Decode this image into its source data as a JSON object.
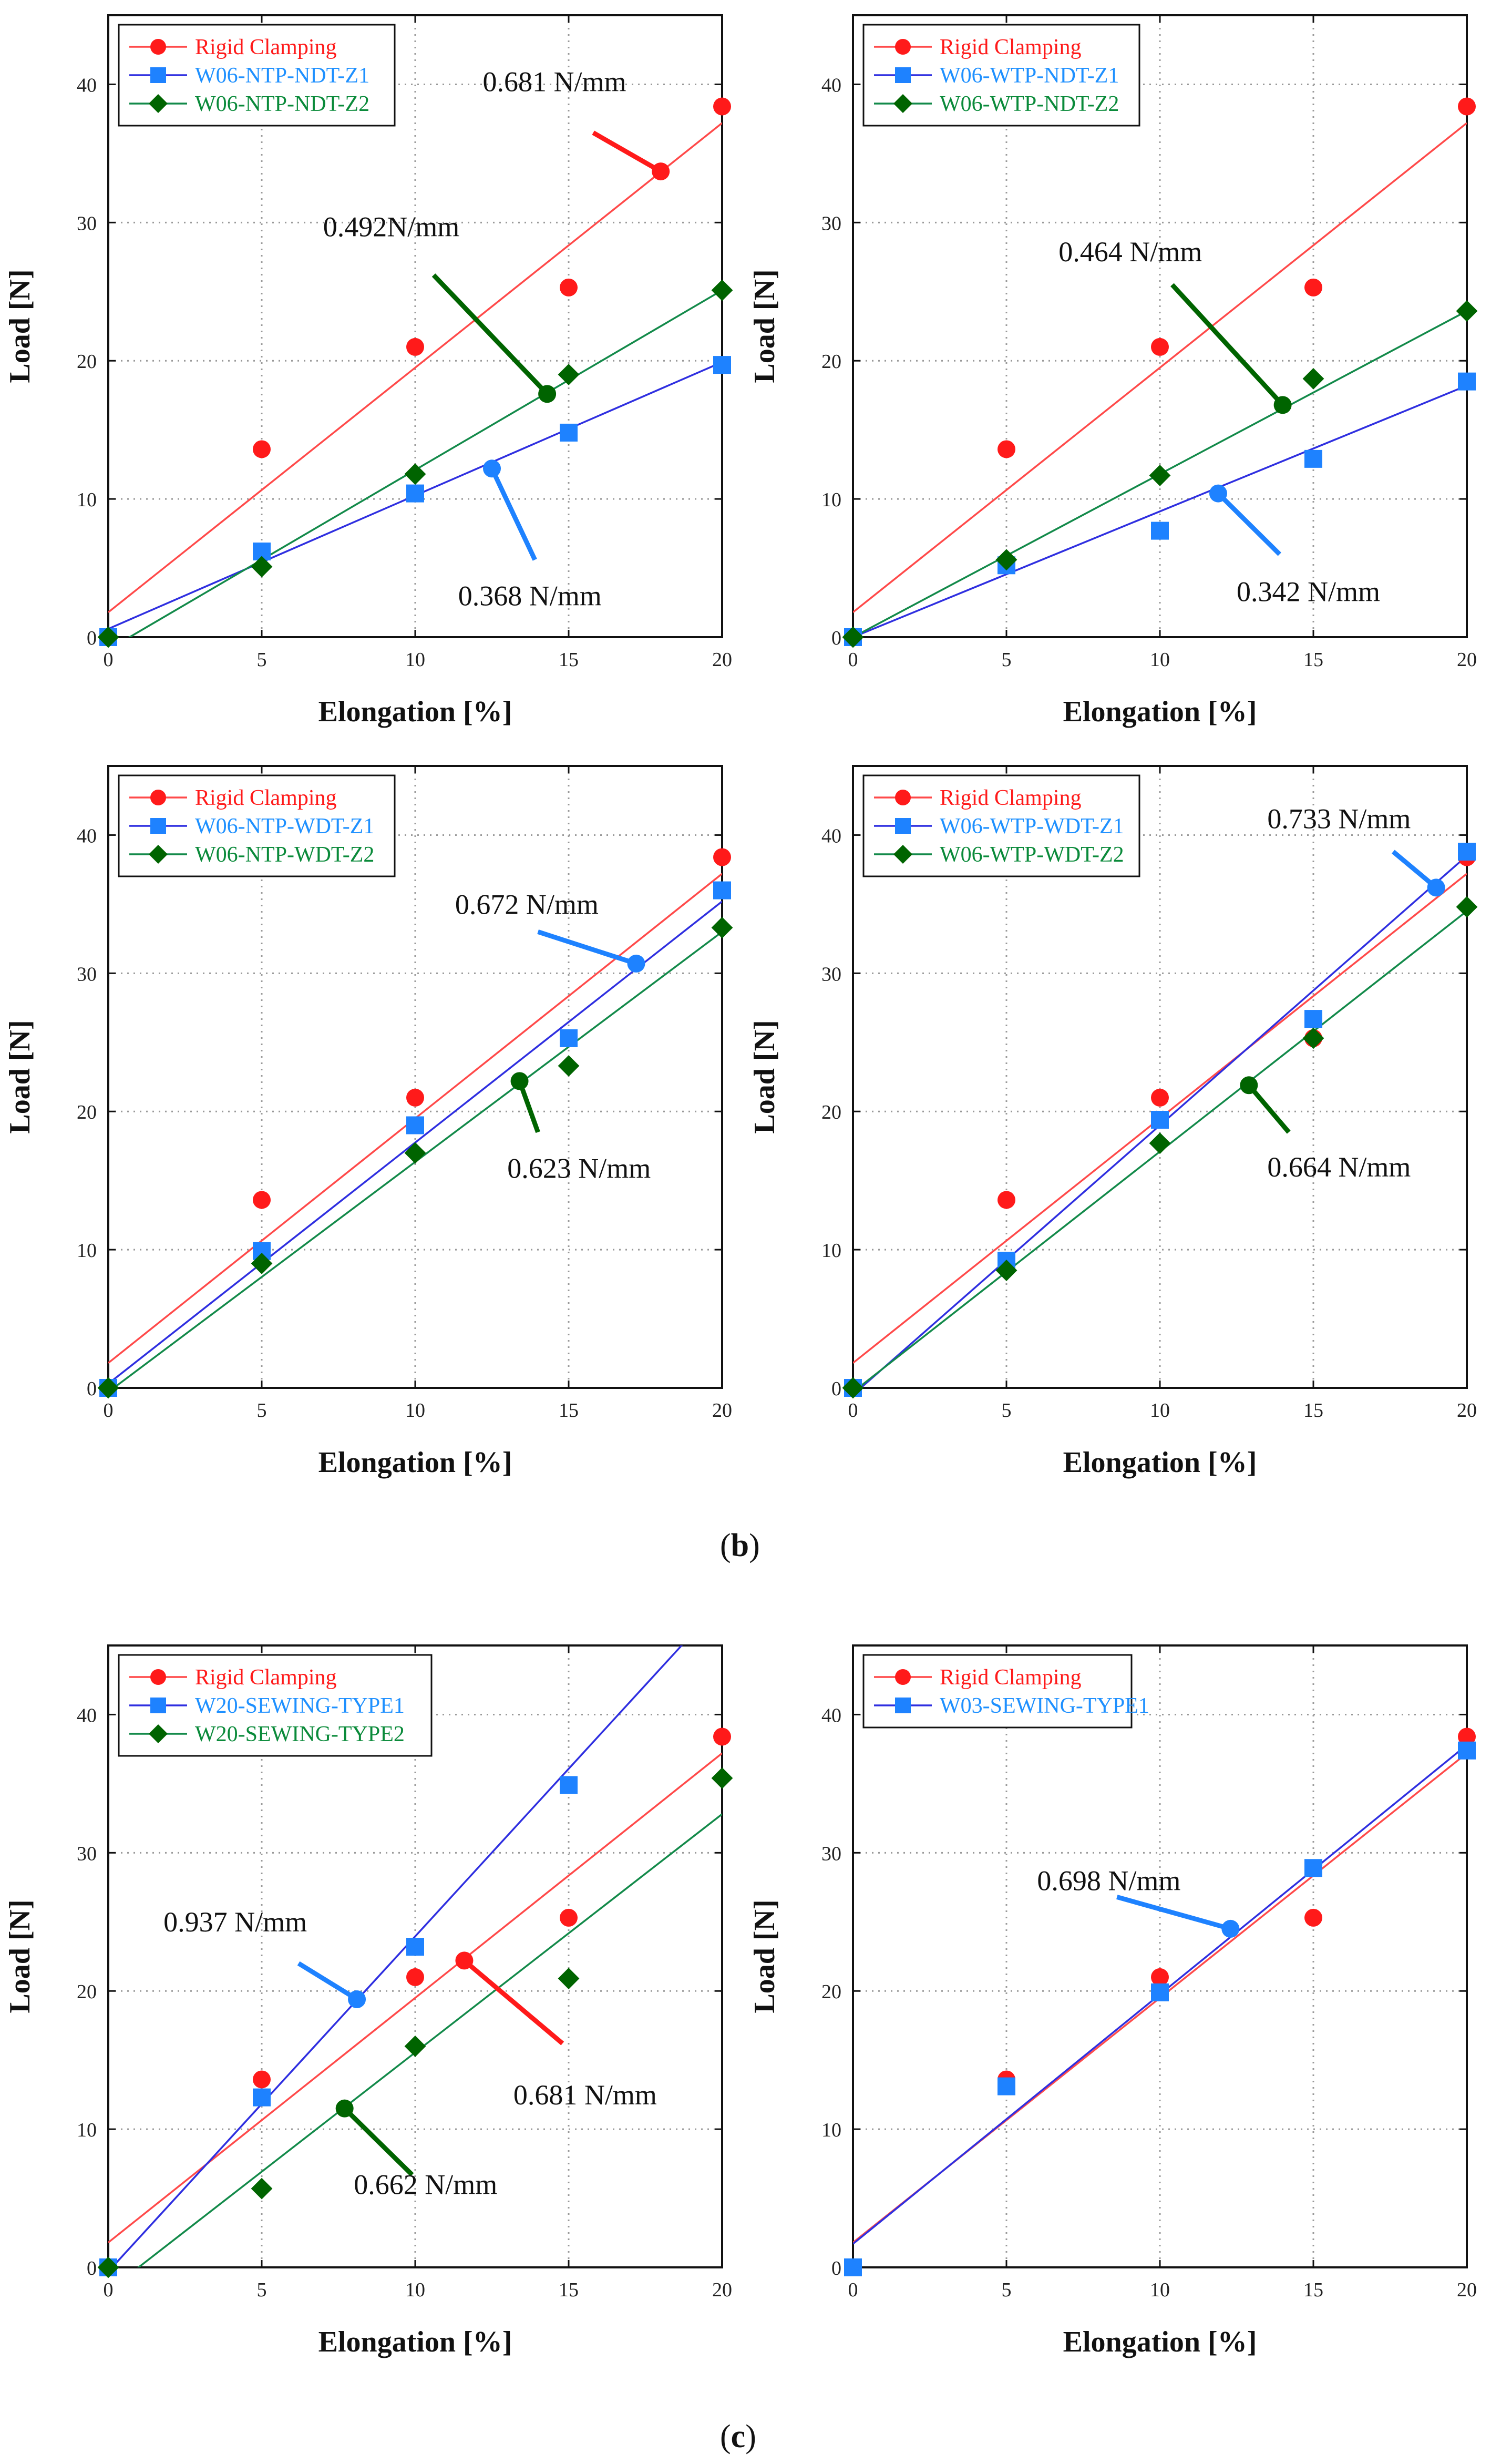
{
  "panel_labels": {
    "b_open": "(",
    "b": "b",
    "b_close": ")",
    "c_open": "(",
    "c": "c",
    "c_close": ")"
  },
  "colors": {
    "rigid_marker": "#ff1a1a",
    "rigid_line": "#ff4a4a",
    "rigid_text": "#ff1a1a",
    "z1_marker": "#1e82ff",
    "z1_line": "#2f2fe0",
    "z1_text": "#1e90ff",
    "z2_marker": "#006400",
    "z2_line": "#138a4a",
    "z2_text": "#0a8a3a"
  },
  "chart_data": [
    {
      "type": "scatter",
      "panel": "b",
      "xlabel": "Elongation [%]",
      "ylabel": "Load [N]",
      "xlim": [
        0,
        20
      ],
      "ylim": [
        0,
        45
      ],
      "xticks": [
        "0",
        "5",
        "10",
        "15",
        "20"
      ],
      "yticks": [
        "0",
        "10",
        "20",
        "30",
        "40"
      ],
      "grid": true,
      "legend_position": "top-left",
      "series": [
        {
          "name": "Rigid Clamping",
          "key": "rigid",
          "marker": "circle",
          "x": [
            0,
            5,
            10,
            15,
            20
          ],
          "y": [
            0,
            13.6,
            21,
            25.3,
            38.4
          ],
          "fit": [
            1.8,
            37.2
          ]
        },
        {
          "name": "W06-NTP-NDT-Z1",
          "key": "z1",
          "marker": "square",
          "x": [
            0,
            5,
            10,
            15,
            20
          ],
          "y": [
            0,
            6.2,
            10.4,
            14.8,
            19.7
          ],
          "fit": [
            0.6,
            19.9
          ]
        },
        {
          "name": "W06-NTP-NDT-Z2",
          "key": "z2",
          "marker": "diamond",
          "x": [
            0,
            5,
            10,
            15,
            20
          ],
          "y": [
            0,
            5.1,
            11.8,
            19,
            25.1
          ],
          "fit": [
            -0.9,
            25.1
          ]
        }
      ],
      "annotations": [
        {
          "text": "0.681 N/mm",
          "series": "rigid",
          "tx": 12.2,
          "ty": 39.5,
          "from": [
            15.8,
            36.5
          ],
          "to": [
            18,
            33.7
          ]
        },
        {
          "text": "0.492N/mm",
          "series": "z2",
          "tx": 7,
          "ty": 29,
          "from": [
            10.6,
            26.2
          ],
          "to": [
            14.3,
            17.6
          ]
        },
        {
          "text": "0.368 N/mm",
          "series": "z1",
          "tx": 11.4,
          "ty": 2.3,
          "from": [
            13.9,
            5.6
          ],
          "to": [
            12.5,
            12.2
          ]
        }
      ]
    },
    {
      "type": "scatter",
      "panel": "b",
      "xlabel": "Elongation [%]",
      "ylabel": "Load [N]",
      "xlim": [
        0,
        20
      ],
      "ylim": [
        0,
        45
      ],
      "xticks": [
        "0",
        "5",
        "10",
        "15",
        "20"
      ],
      "yticks": [
        "0",
        "10",
        "20",
        "30",
        "40"
      ],
      "grid": true,
      "legend_position": "top-left",
      "series": [
        {
          "name": "Rigid Clamping",
          "key": "rigid",
          "marker": "circle",
          "x": [
            0,
            5,
            10,
            15,
            20
          ],
          "y": [
            0,
            13.6,
            21,
            25.3,
            38.4
          ],
          "fit": [
            1.8,
            37.2
          ]
        },
        {
          "name": "W06-WTP-NDT-Z1",
          "key": "z1",
          "marker": "square",
          "x": [
            0,
            5,
            10,
            15,
            20
          ],
          "y": [
            0,
            5.2,
            7.7,
            12.9,
            18.5
          ],
          "fit": [
            0,
            18.2
          ]
        },
        {
          "name": "W06-WTP-NDT-Z2",
          "key": "z2",
          "marker": "diamond",
          "x": [
            0,
            5,
            10,
            15,
            20
          ],
          "y": [
            0,
            5.6,
            11.7,
            18.7,
            23.6
          ],
          "fit": [
            0,
            23.6
          ]
        }
      ],
      "annotations": [
        {
          "text": "0.464 N/mm",
          "series": "z2",
          "tx": 6.7,
          "ty": 27.2,
          "from": [
            10.4,
            25.5
          ],
          "to": [
            14,
            16.8
          ]
        },
        {
          "text": "0.342 N/mm",
          "series": "z1",
          "tx": 12.5,
          "ty": 2.6,
          "from": [
            13.9,
            6
          ],
          "to": [
            11.9,
            10.4
          ]
        }
      ]
    },
    {
      "type": "scatter",
      "panel": "b",
      "xlabel": "Elongation [%]",
      "ylabel": "Load [N]",
      "xlim": [
        0,
        20
      ],
      "ylim": [
        0,
        45
      ],
      "xticks": [
        "0",
        "5",
        "10",
        "15",
        "20"
      ],
      "yticks": [
        "0",
        "10",
        "20",
        "30",
        "40"
      ],
      "grid": true,
      "legend_position": "top-left",
      "series": [
        {
          "name": "Rigid Clamping",
          "key": "rigid",
          "marker": "circle",
          "x": [
            0,
            5,
            10,
            15,
            20
          ],
          "y": [
            0,
            13.6,
            21,
            25.3,
            38.4
          ],
          "fit": [
            1.8,
            37.2
          ]
        },
        {
          "name": "W06-NTP-WDT-Z1",
          "key": "z1",
          "marker": "square",
          "x": [
            0,
            5,
            10,
            15,
            20
          ],
          "y": [
            0,
            9.9,
            19,
            25.3,
            36
          ],
          "fit": [
            0.3,
            35.2
          ]
        },
        {
          "name": "W06-NTP-WDT-Z2",
          "key": "z2",
          "marker": "diamond",
          "x": [
            0,
            5,
            10,
            15,
            20
          ],
          "y": [
            0,
            9,
            17,
            23.3,
            33.3
          ],
          "fit": [
            -0.3,
            33
          ]
        }
      ],
      "annotations": [
        {
          "text": "0.672 N/mm",
          "series": "z1",
          "tx": 11.3,
          "ty": 34.3,
          "from": [
            14,
            33
          ],
          "to": [
            17.2,
            30.7
          ]
        },
        {
          "text": "0.623 N/mm",
          "series": "z2",
          "tx": 13,
          "ty": 15.2,
          "from": [
            14,
            18.5
          ],
          "to": [
            13.4,
            22.2
          ]
        }
      ]
    },
    {
      "type": "scatter",
      "panel": "b",
      "xlabel": "Elongation [%]",
      "ylabel": "Load [N]",
      "xlim": [
        0,
        20
      ],
      "ylim": [
        0,
        45
      ],
      "xticks": [
        "0",
        "5",
        "10",
        "15",
        "20"
      ],
      "yticks": [
        "0",
        "10",
        "20",
        "30",
        "40"
      ],
      "grid": true,
      "legend_position": "top-left",
      "series": [
        {
          "name": "Rigid Clamping",
          "key": "rigid",
          "marker": "circle",
          "x": [
            0,
            5,
            10,
            15,
            20
          ],
          "y": [
            0,
            13.6,
            21,
            25.3,
            38.4
          ],
          "fit": [
            1.8,
            37.2
          ]
        },
        {
          "name": "W06-WTP-WDT-Z1",
          "key": "z1",
          "marker": "square",
          "x": [
            0,
            5,
            10,
            15,
            20
          ],
          "y": [
            0,
            9.2,
            19.4,
            26.7,
            38.8
          ],
          "fit": [
            -0.5,
            38.5
          ]
        },
        {
          "name": "W06-WTP-WDT-Z2",
          "key": "z2",
          "marker": "diamond",
          "x": [
            0,
            5,
            10,
            15,
            20
          ],
          "y": [
            0,
            8.5,
            17.7,
            25.3,
            34.8
          ],
          "fit": [
            -0.3,
            34.5
          ]
        }
      ],
      "annotations": [
        {
          "text": "0.733 N/mm",
          "series": "z1",
          "tx": 13.5,
          "ty": 40.5,
          "from": [
            17.6,
            38.8
          ],
          "to": [
            19,
            36.2
          ]
        },
        {
          "text": "0.664 N/mm",
          "series": "z2",
          "tx": 13.5,
          "ty": 15.3,
          "from": [
            14.2,
            18.5
          ],
          "to": [
            12.9,
            21.9
          ]
        }
      ]
    },
    {
      "type": "scatter",
      "panel": "c",
      "xlabel": "Elongation [%]",
      "ylabel": "Load [N]",
      "xlim": [
        0,
        20
      ],
      "ylim": [
        0,
        45
      ],
      "xticks": [
        "0",
        "5",
        "10",
        "15",
        "20"
      ],
      "yticks": [
        "0",
        "10",
        "20",
        "30",
        "40"
      ],
      "grid": true,
      "legend_position": "top-left",
      "series": [
        {
          "name": "Rigid Clamping",
          "key": "rigid",
          "marker": "circle",
          "x": [
            0,
            5,
            10,
            15,
            20
          ],
          "y": [
            0,
            13.6,
            21,
            25.3,
            38.4
          ],
          "fit": [
            1.8,
            37.2
          ]
        },
        {
          "name": "W20-SEWING-TYPE1",
          "key": "z1",
          "marker": "square",
          "x": [
            0,
            5,
            10,
            15
          ],
          "y": [
            0,
            12.3,
            23.2,
            34.9
          ],
          "fit": [
            -0.3,
            48.2
          ]
        },
        {
          "name": "W20-SEWING-TYPE2",
          "key": "z2",
          "marker": "diamond",
          "x": [
            0,
            5,
            10,
            15,
            20
          ],
          "y": [
            0,
            5.7,
            16,
            20.9,
            35.4
          ],
          "fit": [
            -1.7,
            32.8
          ]
        }
      ],
      "annotations": [
        {
          "text": "0.937 N/mm",
          "series": "z1",
          "tx": 1.8,
          "ty": 24.3,
          "from": [
            6.2,
            22
          ],
          "to": [
            8.1,
            19.4
          ]
        },
        {
          "text": "0.681 N/mm",
          "series": "rigid",
          "tx": 13.2,
          "ty": 11.8,
          "from": [
            14.8,
            16.2
          ],
          "to": [
            11.6,
            22.2
          ]
        },
        {
          "text": "0.662 N/mm",
          "series": "z2",
          "tx": 8,
          "ty": 5.3,
          "from": [
            9.9,
            6.7
          ],
          "to": [
            7.7,
            11.5
          ]
        }
      ]
    },
    {
      "type": "scatter",
      "panel": "c",
      "xlabel": "Elongation [%]",
      "ylabel": "Load [N]",
      "xlim": [
        0,
        20
      ],
      "ylim": [
        0,
        45
      ],
      "xticks": [
        "0",
        "5",
        "10",
        "15",
        "20"
      ],
      "yticks": [
        "0",
        "10",
        "20",
        "30",
        "40"
      ],
      "grid": true,
      "legend_position": "top-left",
      "series": [
        {
          "name": "Rigid Clamping",
          "key": "rigid",
          "marker": "circle",
          "x": [
            0,
            5,
            10,
            15,
            20
          ],
          "y": [
            0,
            13.6,
            21,
            25.3,
            38.4
          ],
          "fit": [
            1.8,
            37.2
          ]
        },
        {
          "name": "W03-SEWING-TYPE1",
          "key": "z1",
          "marker": "square",
          "x": [
            0,
            5,
            10,
            15,
            20
          ],
          "y": [
            0,
            13.1,
            19.9,
            28.9,
            37.4
          ],
          "fit": [
            1.7,
            37.8
          ]
        }
      ],
      "annotations": [
        {
          "text": "0.698 N/mm",
          "series": "z1",
          "tx": 6,
          "ty": 27.3,
          "from": [
            8.6,
            26.8
          ],
          "to": [
            12.3,
            24.5
          ]
        }
      ]
    }
  ]
}
